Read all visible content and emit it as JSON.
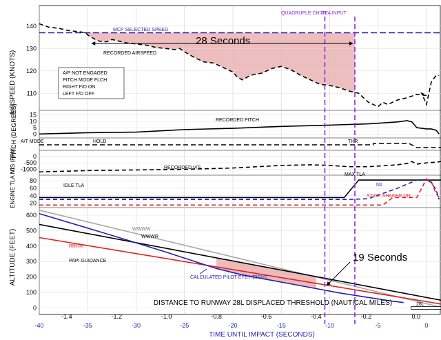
{
  "chart_data": {
    "type": "line",
    "panels": [
      {
        "id": "airspeed",
        "ylabel": "AIRSPEED (KNOTS)",
        "yticks": [
          110,
          120,
          130,
          140
        ],
        "ylim": [
          103,
          143
        ],
        "series": [
          {
            "name": "MCP SELECTED SPEED",
            "color": "#1f1fb4",
            "dash": "long",
            "x": [
              -40,
              1.5
            ],
            "y": [
              137,
              137
            ]
          },
          {
            "name": "RECORDED AIRSPEED",
            "color": "#000000",
            "dash": "dash",
            "x": [
              -40,
              -39,
              -38,
              -37,
              -36,
              -35.2,
              -35,
              -34,
              -33.5,
              -33,
              -32.5,
              -32,
              -31,
              -30,
              -29,
              -28,
              -27,
              -26,
              -25.5,
              -25,
              -24,
              -23,
              -22,
              -21,
              -20,
              -19.5,
              -19,
              -18.2,
              -17,
              -16,
              -15,
              -14,
              -13,
              -12,
              -11,
              -10,
              -9,
              -8,
              -7,
              -6,
              -5,
              -4.5,
              -4,
              -3,
              -2,
              -1,
              0,
              -0.5,
              0,
              0.5,
              1.0,
              1.3
            ],
            "y": [
              141,
              139.5,
              139,
              138,
              137.5,
              137,
              136,
              133.5,
              133,
              133,
              134,
              133.5,
              132.5,
              132,
              131.5,
              130.5,
              130,
              129.5,
              130,
              128.5,
              126,
              124,
              123.5,
              121.5,
              119.5,
              117,
              116,
              118,
              119,
              121,
              122,
              120.5,
              118,
              116,
              114,
              113.5,
              112.5,
              111,
              110,
              106,
              104,
              106,
              105,
              107,
              108,
              109.5,
              109,
              110,
              105,
              115,
              118,
              118
            ]
          }
        ],
        "annotations": [
          "MCP SELECTED SPEED",
          "RECORDED AIRSPEED",
          "28 Seconds",
          "A/P NOT ENGAGED",
          "PITCH MODE FLCH",
          "RIGHT F/D ON",
          "LEFT F/D OFF"
        ]
      },
      {
        "id": "pitch",
        "ylabel": "PITCH (DEGREES)",
        "yticks": [
          0,
          5,
          10,
          15
        ],
        "ylim": [
          -2,
          17
        ],
        "series": [
          {
            "name": "RECORDED PITCH",
            "color": "#000000",
            "dash": "solid",
            "x": [
              -40,
              -35,
              -30,
              -25,
              -20,
              -15,
              -10,
              -8,
              -6,
              -5,
              -3,
              -2,
              -1.5,
              -1,
              0,
              0.5,
              1.0,
              1.3
            ],
            "y": [
              0,
              1,
              1.5,
              3.5,
              4.5,
              6,
              7,
              7.5,
              8,
              8.5,
              9.5,
              10.5,
              9.5,
              5,
              4,
              4,
              3,
              0
            ]
          }
        ]
      },
      {
        "id": "at_mode",
        "labels": [
          "A/T MODE",
          "HOLD",
          "THR"
        ],
        "series": [
          {
            "name": "A/T MODE",
            "color": "#000000",
            "dash": "dash",
            "x": [
              -40,
              -5.5,
              -5.5,
              -1.8,
              -1.0,
              1.5
            ],
            "y": [
              1,
              1,
              1.5,
              1.5,
              0,
              0
            ]
          }
        ]
      },
      {
        "id": "vs",
        "ylabel": "V/S (FPM)",
        "yticks": [
          0,
          -500,
          -1000
        ],
        "ylim": [
          -1400,
          200
        ],
        "series": [
          {
            "name": "RECORDED V/S",
            "color": "#000000",
            "dash": "dash",
            "x": [
              -40,
              -35,
              -30,
              -25,
              -20,
              -15,
              -12,
              -10,
              -8,
              -6,
              -4,
              -3,
              -2,
              -1.5,
              -1,
              0,
              1,
              1.5
            ],
            "y": [
              -1200,
              -1100,
              -1050,
              -1000,
              -900,
              -700,
              -650,
              -700,
              -800,
              -800,
              -700,
              -650,
              -550,
              -400,
              -600,
              -500,
              -450,
              -400
            ]
          }
        ]
      },
      {
        "id": "engine",
        "ylabel": "ENGINE TLA N1",
        "yticks": [
          20,
          40,
          60,
          80
        ],
        "ylim": [
          10,
          95
        ],
        "series": [
          {
            "name": "IDLE TLA",
            "color": "#000000",
            "dash": "solid",
            "x": [
              -40,
              -8.5,
              -7,
              1.5
            ],
            "y": [
              35,
              35,
              82,
              82
            ]
          },
          {
            "name": "N1",
            "color": "#1f1fb4",
            "dash": "dash",
            "x": [
              -40,
              -8,
              -6,
              -3,
              -1,
              0,
              0.5,
              1.0,
              1.3
            ],
            "y": [
              30,
              30,
              32,
              60,
              82,
              83,
              75,
              55,
              30
            ]
          },
          {
            "name": "STICK SHAKER ON",
            "color": "#e02020",
            "dash": "dash",
            "x": [
              -40,
              -4.5,
              -3.5,
              -1,
              0,
              0.5,
              1.0,
              1.3
            ],
            "y": [
              15,
              15,
              35,
              35,
              85,
              78,
              45,
              35
            ]
          }
        ],
        "annotations": [
          "MAX TLA",
          "IDLE TLA",
          "N1",
          "STICK SHAKER ON"
        ]
      },
      {
        "id": "altitude",
        "ylabel": "ALTITUDE (FEET)",
        "yticks": [
          0,
          100,
          200,
          300,
          400,
          500,
          600
        ],
        "ylim": [
          -20,
          640
        ],
        "xlabel": "DISTANCE TO RUNWAY 28L DISPLACED THRESHOLD (NAUTICAL MILES)",
        "xticks": [
          -1.4,
          -1.2,
          -1.0,
          -0.8,
          -0.6,
          -0.4,
          -0.2,
          0.0
        ],
        "xlim": [
          -1.51,
          0.1
        ],
        "series": [
          {
            "name": "WWWW",
            "color": "#a8a8a8",
            "dash": "solid",
            "x": [
              -1.51,
              0.1
            ],
            "y": [
              632,
              5
            ]
          },
          {
            "name": "WWWR",
            "color": "#000000",
            "dash": "solid",
            "x": [
              -1.51,
              0.1
            ],
            "y": [
              540,
              50
            ]
          },
          {
            "name": "RRRR",
            "color": "#e02020",
            "dash": "solid",
            "x": [
              -1.51,
              0.1
            ],
            "y": [
              455,
              25
            ]
          },
          {
            "name": "CALCULATED PILOT EYE HEIGHT",
            "color": "#1f1fb4",
            "dash": "solid",
            "x": [
              -1.51,
              -1.2,
              -1.0,
              -0.8,
              -0.7,
              -0.6,
              -0.5,
              -0.4,
              -0.3,
              -0.2,
              -0.1,
              -0.05
            ],
            "y": [
              610,
              460,
              360,
              255,
              215,
              185,
              155,
              125,
              95,
              70,
              45,
              35
            ]
          }
        ],
        "annotations": [
          "WWWW",
          "WWWR",
          "RRRR",
          "PAPI GUIDANCE",
          "CALCULATED PILOT EYE HEIGHT",
          "19 Seconds",
          "28L"
        ]
      }
    ],
    "time_axis": {
      "label": "TIME UNTIL IMPACT (SECONDS)",
      "ticks": [
        -40,
        -35,
        -30,
        -25,
        -20,
        -15,
        -10,
        -5,
        0
      ],
      "xlim": [
        -40,
        1.5
      ]
    },
    "event_markers": [
      {
        "label": "QUADRUPLE CHIME",
        "time": -10.5,
        "color": "#8a2be2"
      },
      {
        "label": "TLA INPUT",
        "time": -7.4,
        "color": "#8a2be2"
      }
    ]
  }
}
